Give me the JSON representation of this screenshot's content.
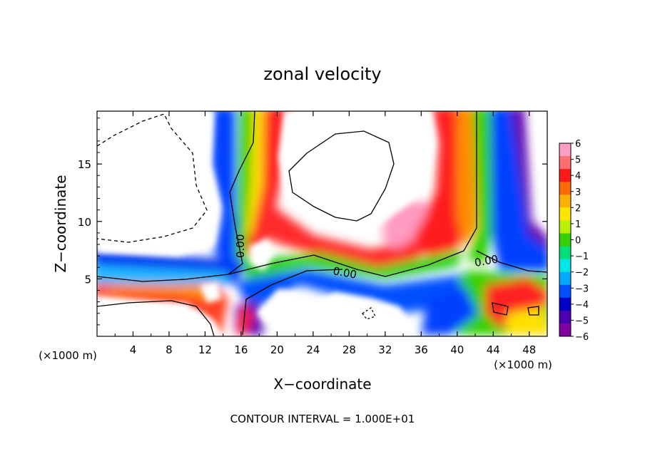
{
  "chart_data": {
    "type": "heatmap",
    "title": "zonal velocity",
    "xlabel": "X−coordinate",
    "ylabel": "Z−coordinate",
    "x_unit_left": "(×1000 m)",
    "x_unit_right": "(×1000 m)",
    "footer": "CONTOUR INTERVAL = 1.000E+01",
    "xlim": [
      0,
      50
    ],
    "ylim": [
      0,
      19.6
    ],
    "x_ticks": [
      4,
      8,
      12,
      16,
      20,
      24,
      28,
      32,
      36,
      40,
      44,
      48
    ],
    "y_ticks": [
      5,
      10,
      15
    ],
    "colorbar": {
      "ticks": [
        6,
        5,
        4,
        3,
        2,
        1,
        0,
        -1,
        -2,
        -3,
        -4,
        -5,
        -6
      ],
      "range": [
        -6,
        6
      ],
      "colors": [
        "#ff9ec4",
        "#ff6f6f",
        "#ff1a1a",
        "#ff6a00",
        "#ffb000",
        "#ffe600",
        "#b8f000",
        "#37d000",
        "#00e07a",
        "#00e6e6",
        "#00a8ff",
        "#0050ff",
        "#0000c8",
        "#4a00b0",
        "#8000a0"
      ]
    },
    "contour_labels": [
      "0.00",
      "0.00",
      "0.00"
    ],
    "grid": false,
    "legend": "colorbar-right"
  }
}
